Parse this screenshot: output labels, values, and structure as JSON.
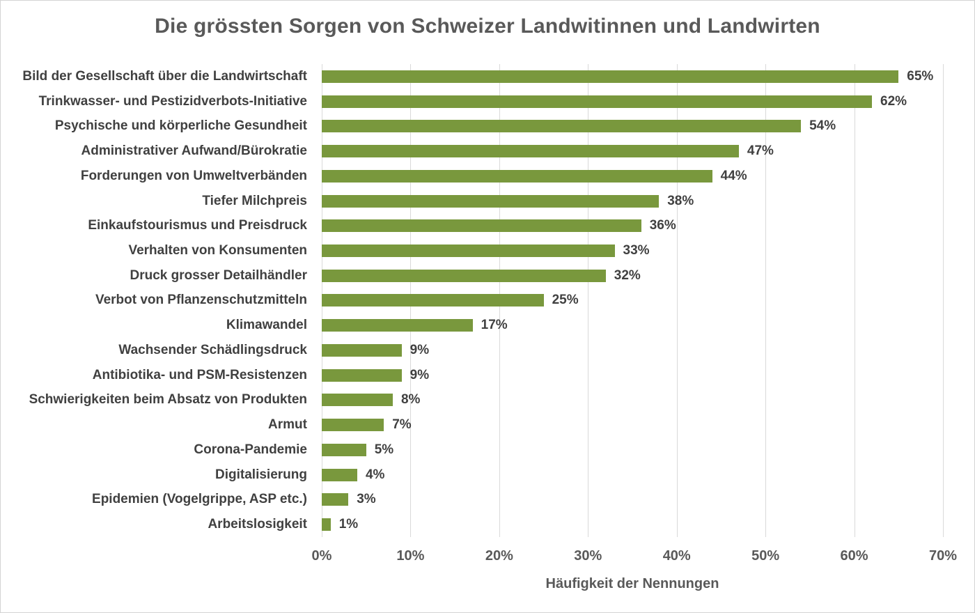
{
  "title": "Die grössten Sorgen von Schweizer Landwitinnen und Landwirten",
  "colors": {
    "bar": "#79983d",
    "title_text": "#595959",
    "label_text": "#404040",
    "axis_text": "#595959",
    "gridline": "#d9d9d9",
    "frame_border": "#d4d4d4"
  },
  "chart_data": {
    "type": "bar",
    "orientation": "horizontal",
    "title": "Die grössten Sorgen von Schweizer Landwitinnen und Landwirten",
    "xlabel": "Häufigkeit der Nennungen",
    "ylabel": "",
    "xlim": [
      0,
      70
    ],
    "x_tick_labels": [
      "0%",
      "10%",
      "20%",
      "30%",
      "40%",
      "50%",
      "60%",
      "70%"
    ],
    "grid": "vertical",
    "legend": "none",
    "categories": [
      "Bild der Gesellschaft über die Landwirtschaft",
      "Trinkwasser- und Pestizidverbots-Initiative",
      "Psychische und körperliche Gesundheit",
      "Administrativer Aufwand/Bürokratie",
      "Forderungen von Umweltverbänden",
      "Tiefer Milchpreis",
      "Einkaufstourismus und Preisdruck",
      "Verhalten von Konsumenten",
      "Druck grosser Detailhändler",
      "Verbot von Pflanzenschutzmitteln",
      "Klimawandel",
      "Wachsender Schädlingsdruck",
      "Antibiotika- und PSM-Resistenzen",
      "Schwierigkeiten beim Absatz von Produkten",
      "Armut",
      "Corona-Pandemie",
      "Digitalisierung",
      "Epidemien (Vogelgrippe, ASP etc.)",
      "Arbeitslosigkeit"
    ],
    "values": [
      65,
      62,
      54,
      47,
      44,
      38,
      36,
      33,
      32,
      25,
      17,
      9,
      9,
      8,
      7,
      5,
      4,
      3,
      1
    ],
    "value_labels": [
      "65%",
      "62%",
      "54%",
      "47%",
      "44%",
      "38%",
      "36%",
      "33%",
      "32%",
      "25%",
      "17%",
      "9%",
      "9%",
      "8%",
      "7%",
      "5%",
      "4%",
      "3%",
      "1%"
    ]
  }
}
